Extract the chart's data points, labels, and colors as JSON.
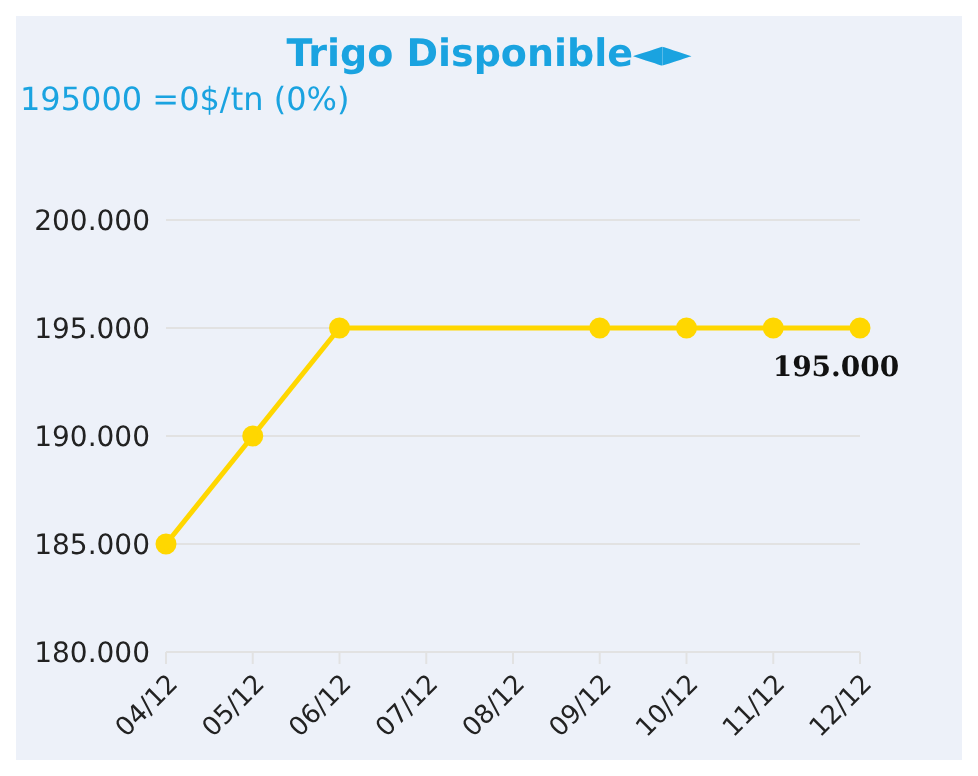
{
  "chart_data": {
    "type": "line",
    "title": "Trigo Disponible◄►",
    "subtitle": "195000 =0$/tn (0%)",
    "categories": [
      "04/12",
      "05/12",
      "06/12",
      "07/12",
      "08/12",
      "09/12",
      "10/12",
      "11/12",
      "12/12"
    ],
    "series": [
      {
        "color": "#ffd700",
        "values": [
          185000,
          190000,
          195000,
          null,
          null,
          195000,
          195000,
          195000,
          195000
        ]
      }
    ],
    "ylim": [
      180000,
      200000
    ],
    "yticks": [
      {
        "value": 180000,
        "label": "180.000"
      },
      {
        "value": 185000,
        "label": "185.000"
      },
      {
        "value": 190000,
        "label": "190.000"
      },
      {
        "value": 195000,
        "label": "195.000"
      },
      {
        "value": 200000,
        "label": "200.000"
      }
    ],
    "grid": "y",
    "marker": "circle",
    "legend": false,
    "annotations": [
      {
        "text": "195.000",
        "x": "12/12",
        "y": 195000
      }
    ]
  }
}
